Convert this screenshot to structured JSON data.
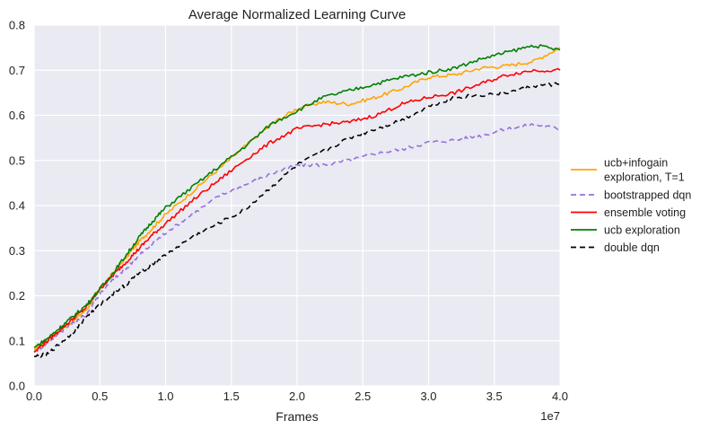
{
  "chart_data": {
    "type": "line",
    "title": "Average Normalized Learning Curve",
    "xlabel": "Frames",
    "ylabel": "",
    "x_scale_label": "1e7",
    "xlim": [
      0,
      4.0
    ],
    "ylim": [
      0,
      0.8
    ],
    "xticks": [
      0,
      0.5,
      1.0,
      1.5,
      2.0,
      2.5,
      3.0,
      3.5,
      4.0
    ],
    "xtick_labels": [
      "0.0",
      "0.5",
      "1.0",
      "1.5",
      "2.0",
      "2.5",
      "3.0",
      "3.5",
      "4.0"
    ],
    "yticks": [
      0,
      0.1,
      0.2,
      0.3,
      0.4,
      0.5,
      0.6,
      0.7,
      0.8
    ],
    "ytick_labels": [
      "0.0",
      "0.1",
      "0.2",
      "0.3",
      "0.4",
      "0.5",
      "0.6",
      "0.7",
      "0.8"
    ],
    "grid": true,
    "legend_position": "right-outside",
    "x": [
      0.0,
      0.1,
      0.2,
      0.3,
      0.4,
      0.5,
      0.6,
      0.7,
      0.8,
      0.9,
      1.0,
      1.2,
      1.4,
      1.6,
      1.8,
      2.0,
      2.2,
      2.4,
      2.6,
      2.8,
      3.0,
      3.2,
      3.4,
      3.6,
      3.8,
      4.0
    ],
    "series": [
      {
        "name": "ucb+infogain exploration, T=1",
        "legend_lines": [
          "ucb+infogain",
          "exploration, T=1"
        ],
        "color": "#FFA500",
        "dash": "solid",
        "values": [
          0.08,
          0.1,
          0.125,
          0.145,
          0.17,
          0.215,
          0.25,
          0.285,
          0.32,
          0.35,
          0.38,
          0.43,
          0.48,
          0.53,
          0.58,
          0.615,
          0.63,
          0.625,
          0.64,
          0.66,
          0.685,
          0.69,
          0.705,
          0.71,
          0.72,
          0.75
        ]
      },
      {
        "name": "bootstrapped dqn",
        "legend_lines": [
          "bootstrapped dqn"
        ],
        "color": "#9370DB",
        "dash": "dashed",
        "values": [
          0.075,
          0.095,
          0.12,
          0.14,
          0.16,
          0.205,
          0.235,
          0.26,
          0.29,
          0.315,
          0.34,
          0.38,
          0.42,
          0.445,
          0.47,
          0.49,
          0.49,
          0.5,
          0.515,
          0.525,
          0.54,
          0.545,
          0.555,
          0.57,
          0.58,
          0.57
        ]
      },
      {
        "name": "ensemble voting",
        "legend_lines": [
          "ensemble voting"
        ],
        "color": "#FF0000",
        "dash": "solid",
        "values": [
          0.075,
          0.1,
          0.125,
          0.15,
          0.175,
          0.215,
          0.245,
          0.275,
          0.305,
          0.335,
          0.36,
          0.41,
          0.455,
          0.5,
          0.54,
          0.57,
          0.58,
          0.585,
          0.6,
          0.625,
          0.64,
          0.65,
          0.67,
          0.69,
          0.7,
          0.7
        ]
      },
      {
        "name": "ucb exploration",
        "legend_lines": [
          "ucb exploration"
        ],
        "color": "#008000",
        "dash": "solid",
        "values": [
          0.085,
          0.105,
          0.13,
          0.155,
          0.18,
          0.215,
          0.25,
          0.29,
          0.33,
          0.365,
          0.395,
          0.44,
          0.485,
          0.53,
          0.58,
          0.61,
          0.64,
          0.655,
          0.67,
          0.685,
          0.695,
          0.705,
          0.725,
          0.74,
          0.755,
          0.745
        ]
      },
      {
        "name": "double dqn",
        "legend_lines": [
          "double dqn"
        ],
        "color": "#000000",
        "dash": "dashed",
        "values": [
          0.065,
          0.07,
          0.095,
          0.12,
          0.155,
          0.18,
          0.205,
          0.225,
          0.25,
          0.27,
          0.29,
          0.33,
          0.36,
          0.39,
          0.44,
          0.49,
          0.52,
          0.55,
          0.57,
          0.59,
          0.62,
          0.64,
          0.645,
          0.65,
          0.665,
          0.67
        ]
      }
    ]
  }
}
